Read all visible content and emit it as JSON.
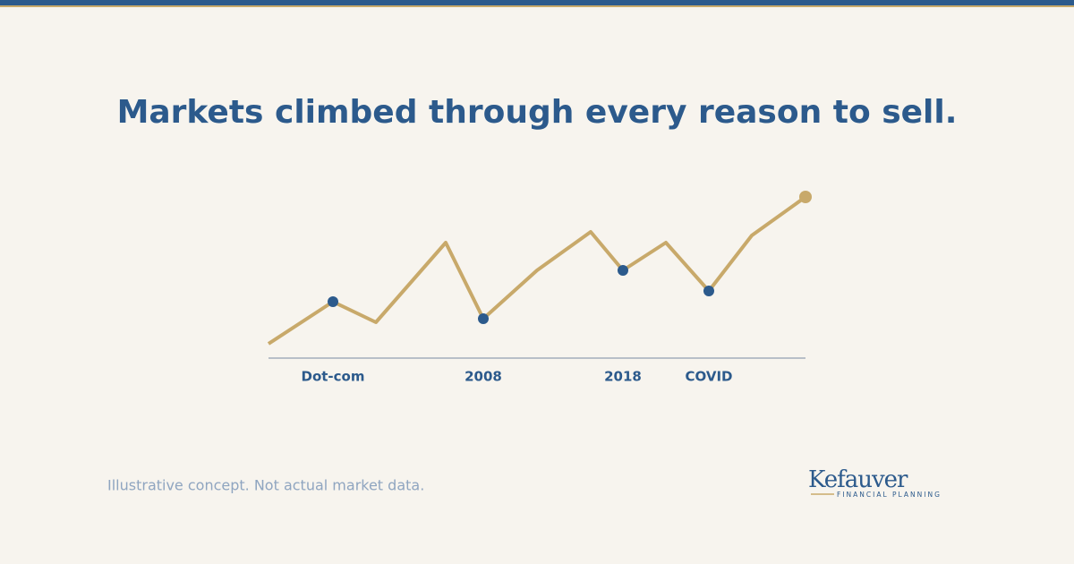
{
  "chart_data": {
    "type": "line",
    "title": "Markets climbed through every reason to sell.",
    "x": [
      0,
      72,
      120,
      198,
      240,
      300,
      360,
      396,
      444,
      492,
      540,
      600
    ],
    "xlim": [
      0,
      600
    ],
    "ylim": [
      0,
      200
    ],
    "series": [
      {
        "color": "#c8a96a",
        "values": [
          16,
          63,
          40,
          129,
          44,
          98,
          141,
          98,
          129,
          75,
          137,
          180
        ]
      }
    ],
    "annotations": [
      {
        "label": "Dot-com",
        "x": 72
      },
      {
        "label": "2008",
        "x": 240
      },
      {
        "label": "2018",
        "x": 396
      },
      {
        "label": "COVID",
        "x": 492
      }
    ],
    "annotation_color": "#2c5a8c",
    "footnote": "Illustrative concept. Not actual market data."
  },
  "brand": {
    "name": "Kefauver",
    "tagline": "FINANCIAL PLANNING"
  }
}
